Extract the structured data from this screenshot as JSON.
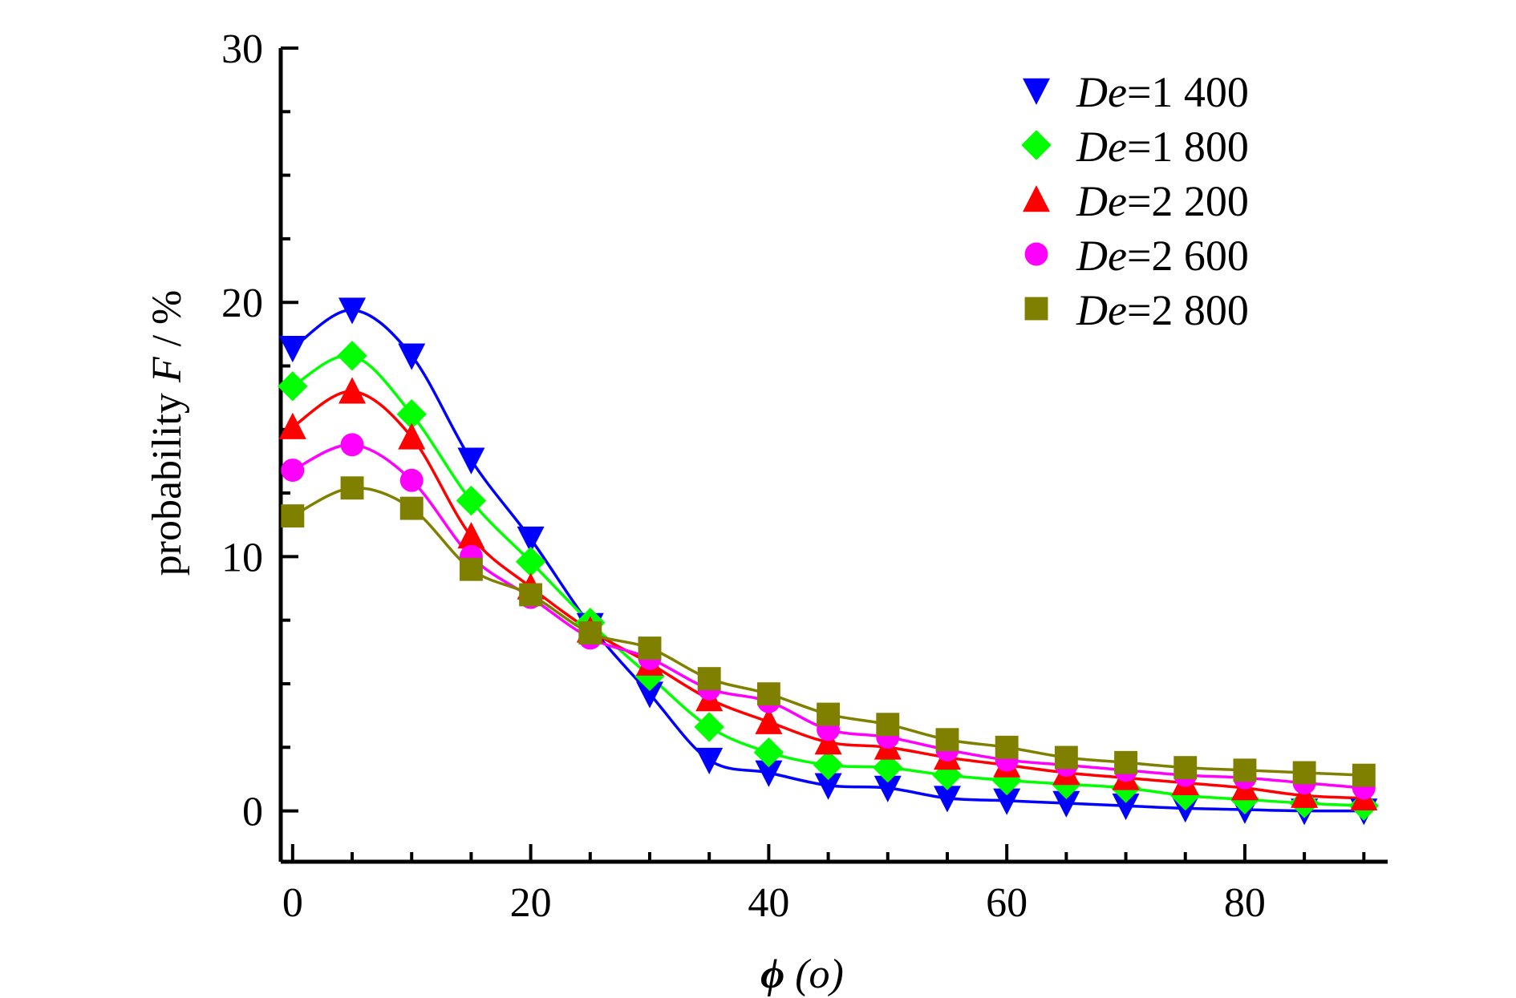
{
  "chart_data": {
    "type": "scatter",
    "xlabel": {
      "symbol": "ϕ",
      "rest": " (o)"
    },
    "ylabel": {
      "prefix": "probability ",
      "symbol": "F",
      "suffix": " / %"
    },
    "xlim": [
      -1,
      92
    ],
    "ylim": [
      -2,
      30
    ],
    "xticks": [
      0,
      20,
      40,
      60,
      80
    ],
    "yticks": [
      0,
      10,
      20,
      30
    ],
    "x_minor_step": 5,
    "y_minor_step": 2.5,
    "legend_position": "top-right",
    "x": [
      0,
      5,
      10,
      15,
      20,
      25,
      30,
      35,
      40,
      45,
      50,
      55,
      60,
      65,
      70,
      75,
      80,
      85,
      90
    ],
    "series": [
      {
        "name": "De=1 400",
        "name_italic": "De",
        "name_value": "=1 400",
        "marker": "triangle-down",
        "color": "#0000ff",
        "values": [
          18.2,
          19.7,
          17.9,
          13.8,
          10.7,
          7.3,
          4.6,
          2.0,
          1.5,
          1.0,
          0.9,
          0.5,
          0.4,
          0.3,
          0.2,
          0.1,
          0.05,
          0.0,
          0.0
        ]
      },
      {
        "name": "De=1 800",
        "name_italic": "De",
        "name_value": "=1 800",
        "marker": "diamond",
        "color": "#00ff00",
        "values": [
          16.7,
          17.9,
          15.6,
          12.2,
          9.8,
          7.4,
          5.3,
          3.3,
          2.3,
          1.8,
          1.7,
          1.4,
          1.2,
          1.05,
          0.9,
          0.6,
          0.45,
          0.3,
          0.2
        ]
      },
      {
        "name": "De=2 200",
        "name_italic": "De",
        "name_value": "=2 200",
        "marker": "triangle-up",
        "color": "#ff0000",
        "values": [
          15.1,
          16.5,
          14.7,
          10.8,
          8.8,
          7.1,
          5.8,
          4.4,
          3.5,
          2.7,
          2.5,
          2.1,
          1.8,
          1.5,
          1.3,
          1.1,
          0.9,
          0.6,
          0.5
        ]
      },
      {
        "name": "De=2 600",
        "name_italic": "De",
        "name_value": "=2 600",
        "marker": "circle",
        "color": "#ff00ff",
        "values": [
          13.4,
          14.4,
          13.0,
          10.0,
          8.4,
          6.8,
          6.0,
          4.8,
          4.3,
          3.2,
          2.9,
          2.4,
          2.0,
          1.8,
          1.6,
          1.4,
          1.3,
          1.1,
          0.9
        ]
      },
      {
        "name": "De=2 800",
        "name_italic": "De",
        "name_value": "=2 800",
        "marker": "square",
        "color": "#808000",
        "values": [
          11.6,
          12.7,
          11.9,
          9.5,
          8.5,
          7.0,
          6.4,
          5.2,
          4.6,
          3.8,
          3.4,
          2.8,
          2.5,
          2.1,
          1.9,
          1.7,
          1.6,
          1.5,
          1.4
        ]
      }
    ]
  }
}
